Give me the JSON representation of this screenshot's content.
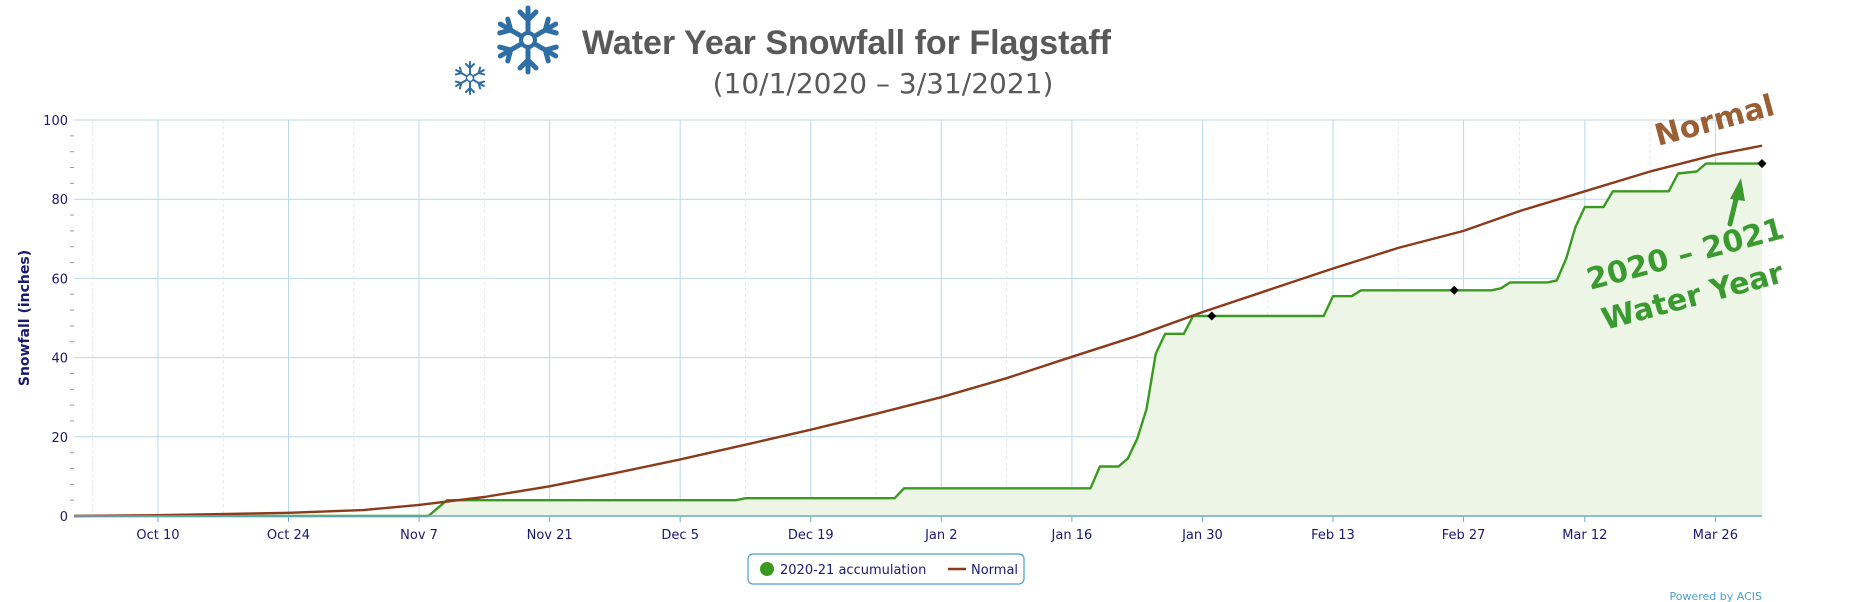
{
  "chart_data": {
    "type": "line",
    "title": "Water Year Snowfall for Flagstaff",
    "subtitle": "(10/1/2020 – 3/31/2021)",
    "ylabel": "Snowfall (inches)",
    "xlabel": "",
    "xlim": [
      "2020-10-01",
      "2021-03-31"
    ],
    "ylim": [
      0,
      100
    ],
    "y_ticks": [
      0,
      20,
      40,
      60,
      80,
      100
    ],
    "x_ticks": [
      {
        "date": "2020-10-10",
        "label": "Oct 10"
      },
      {
        "date": "2020-10-24",
        "label": "Oct 24"
      },
      {
        "date": "2020-11-07",
        "label": "Nov 7"
      },
      {
        "date": "2020-11-21",
        "label": "Nov 21"
      },
      {
        "date": "2020-12-05",
        "label": "Dec 5"
      },
      {
        "date": "2020-12-19",
        "label": "Dec 19"
      },
      {
        "date": "2021-01-02",
        "label": "Jan 2"
      },
      {
        "date": "2021-01-16",
        "label": "Jan 16"
      },
      {
        "date": "2021-01-30",
        "label": "Jan 30"
      },
      {
        "date": "2021-02-13",
        "label": "Feb 13"
      },
      {
        "date": "2021-02-27",
        "label": "Feb 27"
      },
      {
        "date": "2021-03-12",
        "label": "Mar 12"
      },
      {
        "date": "2021-03-26",
        "label": "Mar 26"
      }
    ],
    "grid": true,
    "legend_position": "bottom-center",
    "series": [
      {
        "name": "2020-21 accumulation",
        "color": "#3a9a20",
        "fill": "#edf6e6",
        "points": [
          {
            "x": "2020-10-01",
            "y": 0
          },
          {
            "x": "2020-11-08",
            "y": 0
          },
          {
            "x": "2020-11-09",
            "y": 2
          },
          {
            "x": "2020-11-10",
            "y": 4
          },
          {
            "x": "2020-12-11",
            "y": 4
          },
          {
            "x": "2020-12-12",
            "y": 4.5
          },
          {
            "x": "2020-12-28",
            "y": 4.5
          },
          {
            "x": "2020-12-29",
            "y": 7
          },
          {
            "x": "2021-01-18",
            "y": 7
          },
          {
            "x": "2021-01-19",
            "y": 12.5
          },
          {
            "x": "2021-01-21",
            "y": 12.5
          },
          {
            "x": "2021-01-22",
            "y": 14.5
          },
          {
            "x": "2021-01-23",
            "y": 19.5
          },
          {
            "x": "2021-01-24",
            "y": 27
          },
          {
            "x": "2021-01-25",
            "y": 41
          },
          {
            "x": "2021-01-26",
            "y": 46
          },
          {
            "x": "2021-01-28",
            "y": 46
          },
          {
            "x": "2021-01-29",
            "y": 50.5
          },
          {
            "x": "2021-01-31",
            "y": 50.5
          },
          {
            "x": "2021-02-12",
            "y": 50.5
          },
          {
            "x": "2021-02-13",
            "y": 55.5
          },
          {
            "x": "2021-02-15",
            "y": 55.5
          },
          {
            "x": "2021-02-16",
            "y": 57
          },
          {
            "x": "2021-02-26",
            "y": 57
          },
          {
            "x": "2021-03-02",
            "y": 57
          },
          {
            "x": "2021-03-03",
            "y": 57.5
          },
          {
            "x": "2021-03-04",
            "y": 59
          },
          {
            "x": "2021-03-08",
            "y": 59
          },
          {
            "x": "2021-03-09",
            "y": 59.5
          },
          {
            "x": "2021-03-10",
            "y": 65
          },
          {
            "x": "2021-03-11",
            "y": 73
          },
          {
            "x": "2021-03-12",
            "y": 78
          },
          {
            "x": "2021-03-14",
            "y": 78
          },
          {
            "x": "2021-03-15",
            "y": 82
          },
          {
            "x": "2021-03-21",
            "y": 82
          },
          {
            "x": "2021-03-22",
            "y": 86.5
          },
          {
            "x": "2021-03-24",
            "y": 87
          },
          {
            "x": "2021-03-25",
            "y": 89
          },
          {
            "x": "2021-03-31",
            "y": 89
          }
        ],
        "markers": [
          {
            "x": "2021-01-31",
            "y": 50.5
          },
          {
            "x": "2021-02-26",
            "y": 57
          },
          {
            "x": "2021-03-31",
            "y": 89
          }
        ]
      },
      {
        "name": "Normal",
        "color": "#8b3a1a",
        "points": [
          {
            "x": "2020-10-01",
            "y": 0
          },
          {
            "x": "2020-10-10",
            "y": 0.2
          },
          {
            "x": "2020-10-24",
            "y": 0.8
          },
          {
            "x": "2020-11-01",
            "y": 1.5
          },
          {
            "x": "2020-11-07",
            "y": 2.8
          },
          {
            "x": "2020-11-14",
            "y": 4.8
          },
          {
            "x": "2020-11-21",
            "y": 7.5
          },
          {
            "x": "2020-11-28",
            "y": 10.8
          },
          {
            "x": "2020-12-05",
            "y": 14.3
          },
          {
            "x": "2020-12-12",
            "y": 18
          },
          {
            "x": "2020-12-19",
            "y": 21.8
          },
          {
            "x": "2020-12-26",
            "y": 25.8
          },
          {
            "x": "2021-01-02",
            "y": 30
          },
          {
            "x": "2021-01-09",
            "y": 34.8
          },
          {
            "x": "2021-01-16",
            "y": 40.2
          },
          {
            "x": "2021-01-23",
            "y": 45.5
          },
          {
            "x": "2021-01-30",
            "y": 51.5
          },
          {
            "x": "2021-02-06",
            "y": 57
          },
          {
            "x": "2021-02-13",
            "y": 62.5
          },
          {
            "x": "2021-02-20",
            "y": 67.7
          },
          {
            "x": "2021-02-27",
            "y": 72
          },
          {
            "x": "2021-03-05",
            "y": 77
          },
          {
            "x": "2021-03-12",
            "y": 82
          },
          {
            "x": "2021-03-19",
            "y": 87
          },
          {
            "x": "2021-03-26",
            "y": 91.2
          },
          {
            "x": "2021-03-31",
            "y": 93.5
          }
        ]
      }
    ],
    "annotations": {
      "normal_label": "Normal",
      "water_year_line1": "2020 – 2021",
      "water_year_line2": "Water Year"
    }
  },
  "legend": {
    "items": [
      {
        "label": "2020-21 accumulation",
        "color": "#3a9a20",
        "symbol": "dot"
      },
      {
        "label": "Normal",
        "color": "#8b3a1a",
        "symbol": "line"
      }
    ]
  },
  "credit": "Powered by ACIS",
  "icons": [
    "snowflake-large-icon",
    "snowflake-small-icon"
  ],
  "colors": {
    "accent_blue": "#2f6fa6",
    "grid": "#b9d9ec",
    "axis_text": "#1a1a6e"
  }
}
